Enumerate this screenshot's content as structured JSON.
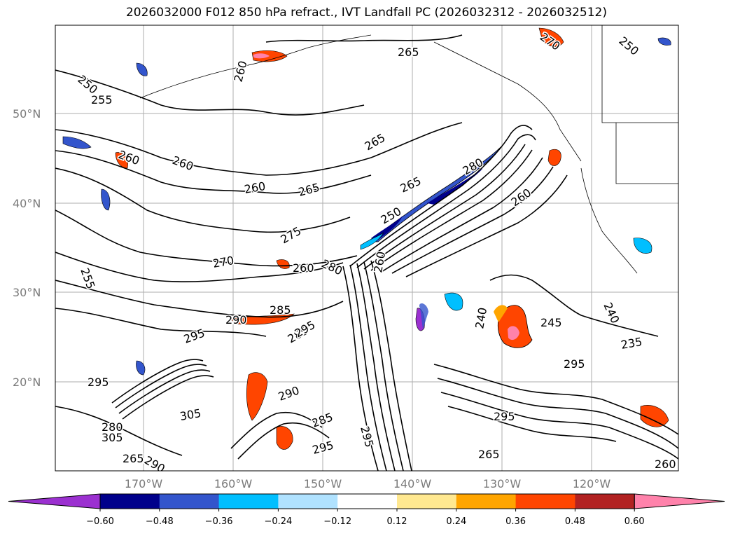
{
  "title": "2026032000 F012 850 hPa refract., IVT Landfall PC (2026032312 - 2026032512)",
  "lat_labels": [
    "50°N",
    "40°N",
    "30°N",
    "20°N"
  ],
  "lon_labels": [
    "170°W",
    "160°W",
    "150°W",
    "140°W",
    "130°W",
    "120°W"
  ],
  "contour_labels": [
    "265",
    "260",
    "250",
    "255",
    "270",
    "250",
    "260",
    "260",
    "260",
    "265",
    "265",
    "265",
    "275",
    "255",
    "270",
    "260",
    "280",
    "260",
    "250",
    "280",
    "260",
    "285",
    "290",
    "285",
    "295",
    "295",
    "240",
    "245",
    "240",
    "235",
    "295",
    "305",
    "280",
    "295",
    "305",
    "265",
    "290",
    "290",
    "285",
    "295",
    "295",
    "295",
    "265",
    "260"
  ],
  "colorbar": {
    "ticks": [
      "−0.60",
      "−0.48",
      "−0.36",
      "−0.24",
      "−0.12",
      "0.12",
      "0.24",
      "0.36",
      "0.48",
      "0.60"
    ],
    "colors": [
      "#9b30d0",
      "#00008b",
      "#3355cc",
      "#00bfff",
      "#b0e2ff",
      "#ffffff",
      "#ffe890",
      "#ffa500",
      "#ff4500",
      "#b22222",
      "#ff82ab"
    ]
  },
  "icons": {
    "colorbar_left": "left-extend-arrow",
    "colorbar_right": "right-extend-arrow"
  }
}
